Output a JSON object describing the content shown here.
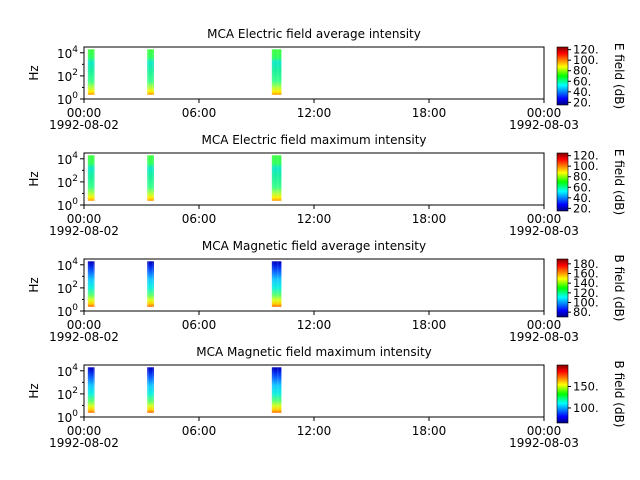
{
  "chart_data": [
    {
      "type": "heatmap",
      "title": "MCA  Electric field average intensity",
      "ylabel": "Hz",
      "yscale": "log",
      "ylim": [
        1,
        31623
      ],
      "y_ticks": [
        {
          "v": 1,
          "b": "10",
          "e": "0"
        },
        {
          "v": 100,
          "b": "10",
          "e": "2"
        },
        {
          "v": 10000,
          "b": "10",
          "e": "4"
        }
      ],
      "xlim": [
        "1992-08-02 00:00",
        "1992-08-03 00:00"
      ],
      "x_ticks": [
        {
          "h": 0,
          "label": "00:00",
          "sub": "1992-08-02"
        },
        {
          "h": 6,
          "label": "06:00",
          "sub": ""
        },
        {
          "h": 12,
          "label": "12:00",
          "sub": ""
        },
        {
          "h": 18,
          "label": "18:00",
          "sub": ""
        },
        {
          "h": 24,
          "label": "00:00",
          "sub": "1992-08-03"
        }
      ],
      "time_blocks_hours": [
        [
          0.2,
          0.55
        ],
        [
          3.3,
          3.65
        ],
        [
          9.8,
          10.3
        ]
      ],
      "profile": "electric",
      "colorbar": {
        "label": "E field (dB)",
        "range": [
          15,
          125
        ],
        "ticks": [
          {
            "v": 20,
            "label": "20."
          },
          {
            "v": 40,
            "label": "40."
          },
          {
            "v": 60,
            "label": "60."
          },
          {
            "v": 80,
            "label": "80."
          },
          {
            "v": 100,
            "label": "100."
          },
          {
            "v": 120,
            "label": "120."
          }
        ]
      }
    },
    {
      "type": "heatmap",
      "title": "MCA  Electric field maximum intensity",
      "ylabel": "Hz",
      "yscale": "log",
      "ylim": [
        1,
        31623
      ],
      "y_ticks": [
        {
          "v": 1,
          "b": "10",
          "e": "0"
        },
        {
          "v": 100,
          "b": "10",
          "e": "2"
        },
        {
          "v": 10000,
          "b": "10",
          "e": "4"
        }
      ],
      "xlim": [
        "1992-08-02 00:00",
        "1992-08-03 00:00"
      ],
      "x_ticks": [
        {
          "h": 0,
          "label": "00:00",
          "sub": "1992-08-02"
        },
        {
          "h": 6,
          "label": "06:00",
          "sub": ""
        },
        {
          "h": 12,
          "label": "12:00",
          "sub": ""
        },
        {
          "h": 18,
          "label": "18:00",
          "sub": ""
        },
        {
          "h": 24,
          "label": "00:00",
          "sub": "1992-08-03"
        }
      ],
      "time_blocks_hours": [
        [
          0.2,
          0.55
        ],
        [
          3.3,
          3.65
        ],
        [
          9.8,
          10.3
        ]
      ],
      "profile": "electric",
      "colorbar": {
        "label": "E field (dB)",
        "range": [
          15,
          125
        ],
        "ticks": [
          {
            "v": 20,
            "label": "20."
          },
          {
            "v": 40,
            "label": "40."
          },
          {
            "v": 60,
            "label": "60."
          },
          {
            "v": 80,
            "label": "80."
          },
          {
            "v": 100,
            "label": "100."
          },
          {
            "v": 120,
            "label": "120."
          }
        ]
      }
    },
    {
      "type": "heatmap",
      "title": "MCA  Magnetic field average intensity",
      "ylabel": "Hz",
      "yscale": "log",
      "ylim": [
        1,
        31623
      ],
      "y_ticks": [
        {
          "v": 1,
          "b": "10",
          "e": "0"
        },
        {
          "v": 100,
          "b": "10",
          "e": "2"
        },
        {
          "v": 10000,
          "b": "10",
          "e": "4"
        }
      ],
      "xlim": [
        "1992-08-02 00:00",
        "1992-08-03 00:00"
      ],
      "x_ticks": [
        {
          "h": 0,
          "label": "00:00",
          "sub": "1992-08-02"
        },
        {
          "h": 6,
          "label": "06:00",
          "sub": ""
        },
        {
          "h": 12,
          "label": "12:00",
          "sub": ""
        },
        {
          "h": 18,
          "label": "18:00",
          "sub": ""
        },
        {
          "h": 24,
          "label": "00:00",
          "sub": "1992-08-03"
        }
      ],
      "time_blocks_hours": [
        [
          0.2,
          0.55
        ],
        [
          3.3,
          3.65
        ],
        [
          9.8,
          10.3
        ]
      ],
      "profile": "magnetic",
      "colorbar": {
        "label": "B field (dB)",
        "range": [
          70,
          190
        ],
        "ticks": [
          {
            "v": 80,
            "label": "80."
          },
          {
            "v": 100,
            "label": "100."
          },
          {
            "v": 120,
            "label": "120."
          },
          {
            "v": 140,
            "label": "140."
          },
          {
            "v": 160,
            "label": "160."
          },
          {
            "v": 180,
            "label": "180."
          }
        ]
      }
    },
    {
      "type": "heatmap",
      "title": "MCA  Magnetic field maximum intensity",
      "ylabel": "Hz",
      "yscale": "log",
      "ylim": [
        1,
        31623
      ],
      "y_ticks": [
        {
          "v": 1,
          "b": "10",
          "e": "0"
        },
        {
          "v": 100,
          "b": "10",
          "e": "2"
        },
        {
          "v": 10000,
          "b": "10",
          "e": "4"
        }
      ],
      "xlim": [
        "1992-08-02 00:00",
        "1992-08-03 00:00"
      ],
      "x_ticks": [
        {
          "h": 0,
          "label": "00:00",
          "sub": "1992-08-02"
        },
        {
          "h": 6,
          "label": "06:00",
          "sub": ""
        },
        {
          "h": 12,
          "label": "12:00",
          "sub": ""
        },
        {
          "h": 18,
          "label": "18:00",
          "sub": ""
        },
        {
          "h": 24,
          "label": "00:00",
          "sub": "1992-08-03"
        }
      ],
      "time_blocks_hours": [
        [
          0.2,
          0.55
        ],
        [
          3.3,
          3.65
        ],
        [
          9.8,
          10.3
        ]
      ],
      "profile": "magnetic",
      "colorbar": {
        "label": "B field (dB)",
        "range": [
          65,
          200
        ],
        "ticks": [
          {
            "v": 100,
            "label": "100."
          },
          {
            "v": 150,
            "label": "150."
          }
        ]
      }
    }
  ]
}
